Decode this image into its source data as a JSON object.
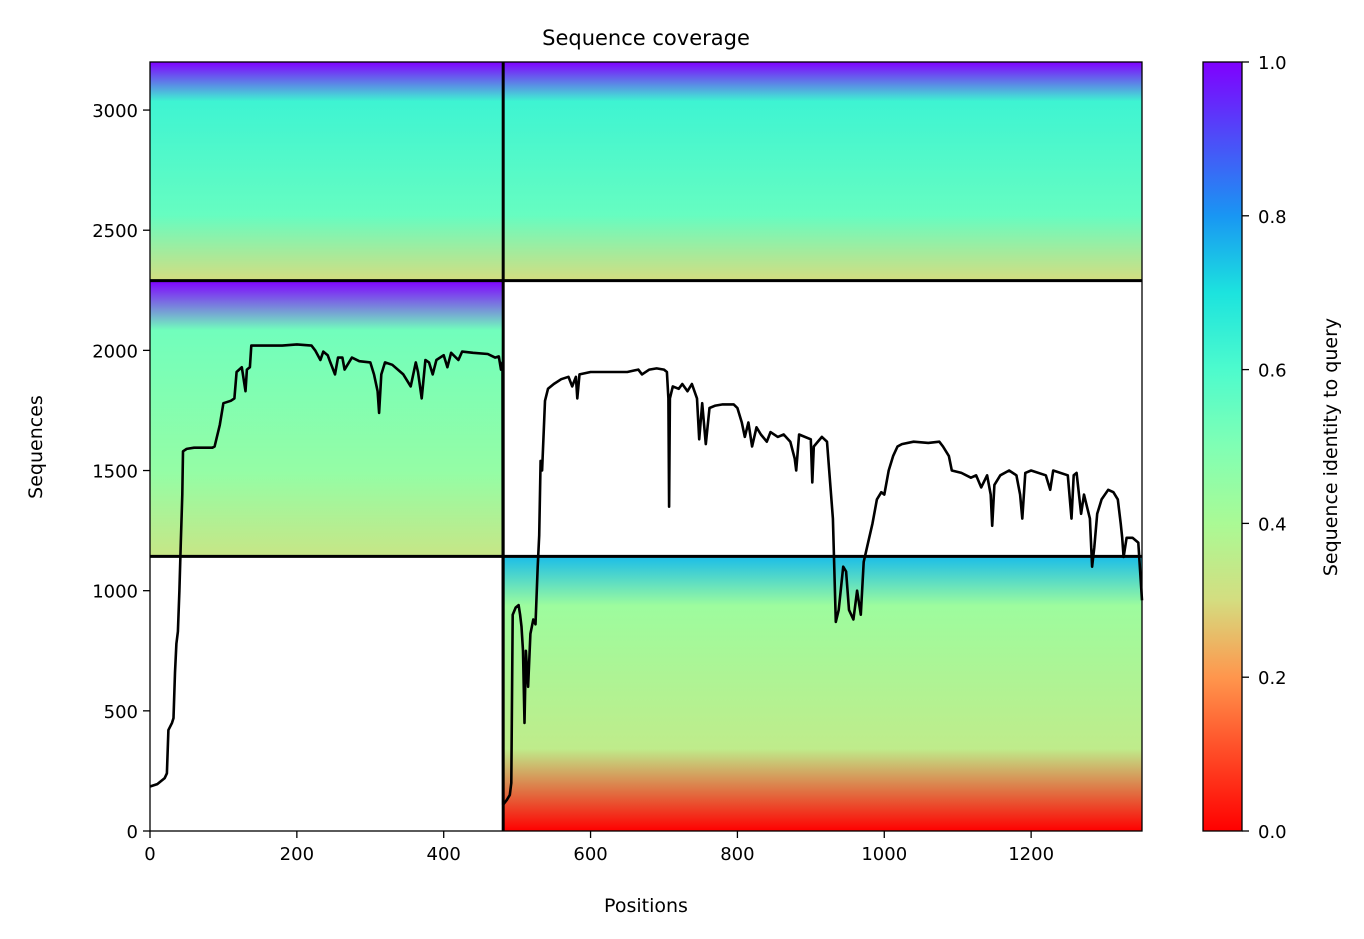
{
  "chart_data": {
    "type": "heatmap",
    "title": "Sequence coverage",
    "xlabel": "Positions",
    "ylabel": "Sequences",
    "xlim": [
      0,
      1351
    ],
    "ylim": [
      0,
      3200
    ],
    "x_ticks": [
      0,
      200,
      400,
      600,
      800,
      1000,
      1200
    ],
    "y_ticks": [
      0,
      500,
      1000,
      1500,
      2000,
      2500,
      3000
    ],
    "colorbar": {
      "label": "Sequence identity to query",
      "colormap": "rainbow_r",
      "range": [
        0,
        1
      ],
      "ticks": [
        "0.0",
        "0.2",
        "0.4",
        "0.6",
        "0.8",
        "1.0"
      ]
    },
    "chain_boundary_position": 481,
    "sequence_group_boundaries": [
      1143,
      2290
    ],
    "blocks": [
      {
        "name": "paired",
        "x_range": [
          0,
          481
        ],
        "y_range": [
          2290,
          3200
        ],
        "identity_top": 1.0,
        "identity_mid": 0.55,
        "identity_bottom": 0.3
      },
      {
        "name": "paired",
        "x_range": [
          481,
          1351
        ],
        "y_range": [
          2290,
          3200
        ],
        "identity_top": 1.0,
        "identity_mid": 0.55,
        "identity_bottom": 0.3
      },
      {
        "name": "unpaired",
        "x_range": [
          0,
          481
        ],
        "y_range": [
          1143,
          2290
        ],
        "identity_top": 1.0,
        "identity_mid": 0.45,
        "identity_bottom": 0.33
      },
      {
        "name": "unpaired",
        "x_range": [
          481,
          1351
        ],
        "y_range": [
          0,
          1143
        ],
        "identity_top": 0.75,
        "identity_mid": 0.35,
        "identity_bottom": 0.0
      }
    ],
    "coverage_line": {
      "color": "#000000",
      "points": [
        [
          0,
          185
        ],
        [
          10,
          195
        ],
        [
          20,
          220
        ],
        [
          23,
          240
        ],
        [
          25,
          420
        ],
        [
          30,
          450
        ],
        [
          32,
          470
        ],
        [
          34,
          660
        ],
        [
          36,
          780
        ],
        [
          38,
          830
        ],
        [
          40,
          1000
        ],
        [
          42,
          1200
        ],
        [
          44,
          1400
        ],
        [
          45,
          1580
        ],
        [
          50,
          1590
        ],
        [
          60,
          1595
        ],
        [
          85,
          1595
        ],
        [
          88,
          1600
        ],
        [
          95,
          1690
        ],
        [
          100,
          1780
        ],
        [
          110,
          1790
        ],
        [
          115,
          1800
        ],
        [
          118,
          1910
        ],
        [
          125,
          1930
        ],
        [
          130,
          1830
        ],
        [
          132,
          1920
        ],
        [
          136,
          1930
        ],
        [
          138,
          2020
        ],
        [
          150,
          2020
        ],
        [
          180,
          2020
        ],
        [
          200,
          2025
        ],
        [
          220,
          2020
        ],
        [
          225,
          2000
        ],
        [
          232,
          1960
        ],
        [
          236,
          1995
        ],
        [
          242,
          1980
        ],
        [
          245,
          1955
        ],
        [
          252,
          1900
        ],
        [
          256,
          1970
        ],
        [
          262,
          1970
        ],
        [
          265,
          1920
        ],
        [
          275,
          1970
        ],
        [
          285,
          1955
        ],
        [
          300,
          1950
        ],
        [
          305,
          1900
        ],
        [
          310,
          1830
        ],
        [
          312,
          1740
        ],
        [
          315,
          1900
        ],
        [
          320,
          1950
        ],
        [
          330,
          1940
        ],
        [
          345,
          1900
        ],
        [
          355,
          1850
        ],
        [
          362,
          1950
        ],
        [
          365,
          1910
        ],
        [
          370,
          1800
        ],
        [
          375,
          1960
        ],
        [
          380,
          1950
        ],
        [
          385,
          1900
        ],
        [
          390,
          1960
        ],
        [
          400,
          1980
        ],
        [
          405,
          1930
        ],
        [
          410,
          1990
        ],
        [
          420,
          1960
        ],
        [
          425,
          1995
        ],
        [
          440,
          1990
        ],
        [
          460,
          1985
        ],
        [
          470,
          1970
        ],
        [
          475,
          1975
        ],
        [
          478,
          1920
        ],
        [
          480,
          1950
        ],
        [
          481,
          110
        ],
        [
          486,
          130
        ],
        [
          490,
          150
        ],
        [
          492,
          200
        ],
        [
          494,
          900
        ],
        [
          498,
          930
        ],
        [
          502,
          940
        ],
        [
          504,
          900
        ],
        [
          506,
          850
        ],
        [
          508,
          750
        ],
        [
          510,
          450
        ],
        [
          512,
          750
        ],
        [
          515,
          600
        ],
        [
          518,
          820
        ],
        [
          522,
          880
        ],
        [
          525,
          860
        ],
        [
          528,
          1100
        ],
        [
          530,
          1230
        ],
        [
          532,
          1540
        ],
        [
          534,
          1500
        ],
        [
          538,
          1790
        ],
        [
          542,
          1840
        ],
        [
          550,
          1860
        ],
        [
          560,
          1880
        ],
        [
          570,
          1890
        ],
        [
          575,
          1850
        ],
        [
          580,
          1890
        ],
        [
          582,
          1800
        ],
        [
          585,
          1900
        ],
        [
          600,
          1910
        ],
        [
          620,
          1910
        ],
        [
          650,
          1910
        ],
        [
          665,
          1920
        ],
        [
          670,
          1900
        ],
        [
          680,
          1920
        ],
        [
          690,
          1925
        ],
        [
          700,
          1920
        ],
        [
          704,
          1910
        ],
        [
          706,
          1800
        ],
        [
          707,
          1350
        ],
        [
          708,
          1800
        ],
        [
          712,
          1850
        ],
        [
          720,
          1840
        ],
        [
          725,
          1860
        ],
        [
          732,
          1830
        ],
        [
          738,
          1860
        ],
        [
          745,
          1800
        ],
        [
          748,
          1630
        ],
        [
          752,
          1780
        ],
        [
          757,
          1610
        ],
        [
          762,
          1760
        ],
        [
          770,
          1770
        ],
        [
          780,
          1775
        ],
        [
          795,
          1775
        ],
        [
          800,
          1760
        ],
        [
          806,
          1700
        ],
        [
          810,
          1640
        ],
        [
          815,
          1700
        ],
        [
          820,
          1600
        ],
        [
          826,
          1680
        ],
        [
          832,
          1650
        ],
        [
          840,
          1620
        ],
        [
          845,
          1660
        ],
        [
          855,
          1640
        ],
        [
          863,
          1650
        ],
        [
          872,
          1620
        ],
        [
          878,
          1550
        ],
        [
          880,
          1500
        ],
        [
          884,
          1650
        ],
        [
          900,
          1630
        ],
        [
          902,
          1450
        ],
        [
          904,
          1600
        ],
        [
          915,
          1640
        ],
        [
          922,
          1620
        ],
        [
          925,
          1500
        ],
        [
          930,
          1300
        ],
        [
          934,
          870
        ],
        [
          938,
          920
        ],
        [
          944,
          1100
        ],
        [
          948,
          1080
        ],
        [
          952,
          920
        ],
        [
          958,
          880
        ],
        [
          963,
          1000
        ],
        [
          968,
          900
        ],
        [
          972,
          1120
        ],
        [
          978,
          1200
        ],
        [
          984,
          1280
        ],
        [
          990,
          1380
        ],
        [
          996,
          1410
        ],
        [
          1000,
          1400
        ],
        [
          1006,
          1500
        ],
        [
          1012,
          1560
        ],
        [
          1018,
          1600
        ],
        [
          1024,
          1610
        ],
        [
          1040,
          1620
        ],
        [
          1060,
          1615
        ],
        [
          1075,
          1620
        ],
        [
          1080,
          1600
        ],
        [
          1088,
          1560
        ],
        [
          1092,
          1500
        ],
        [
          1105,
          1490
        ],
        [
          1118,
          1470
        ],
        [
          1125,
          1480
        ],
        [
          1132,
          1430
        ],
        [
          1140,
          1480
        ],
        [
          1145,
          1400
        ],
        [
          1147,
          1270
        ],
        [
          1150,
          1440
        ],
        [
          1158,
          1480
        ],
        [
          1170,
          1500
        ],
        [
          1180,
          1480
        ],
        [
          1185,
          1400
        ],
        [
          1188,
          1300
        ],
        [
          1192,
          1490
        ],
        [
          1200,
          1500
        ],
        [
          1220,
          1480
        ],
        [
          1226,
          1420
        ],
        [
          1230,
          1500
        ],
        [
          1250,
          1480
        ],
        [
          1255,
          1300
        ],
        [
          1258,
          1480
        ],
        [
          1262,
          1490
        ],
        [
          1268,
          1320
        ],
        [
          1272,
          1400
        ],
        [
          1280,
          1300
        ],
        [
          1283,
          1100
        ],
        [
          1286,
          1180
        ],
        [
          1290,
          1320
        ],
        [
          1296,
          1380
        ],
        [
          1305,
          1420
        ],
        [
          1312,
          1410
        ],
        [
          1318,
          1380
        ],
        [
          1322,
          1280
        ],
        [
          1324,
          1220
        ],
        [
          1326,
          1140
        ],
        [
          1330,
          1220
        ],
        [
          1338,
          1220
        ],
        [
          1346,
          1200
        ],
        [
          1351,
          960
        ]
      ]
    }
  }
}
